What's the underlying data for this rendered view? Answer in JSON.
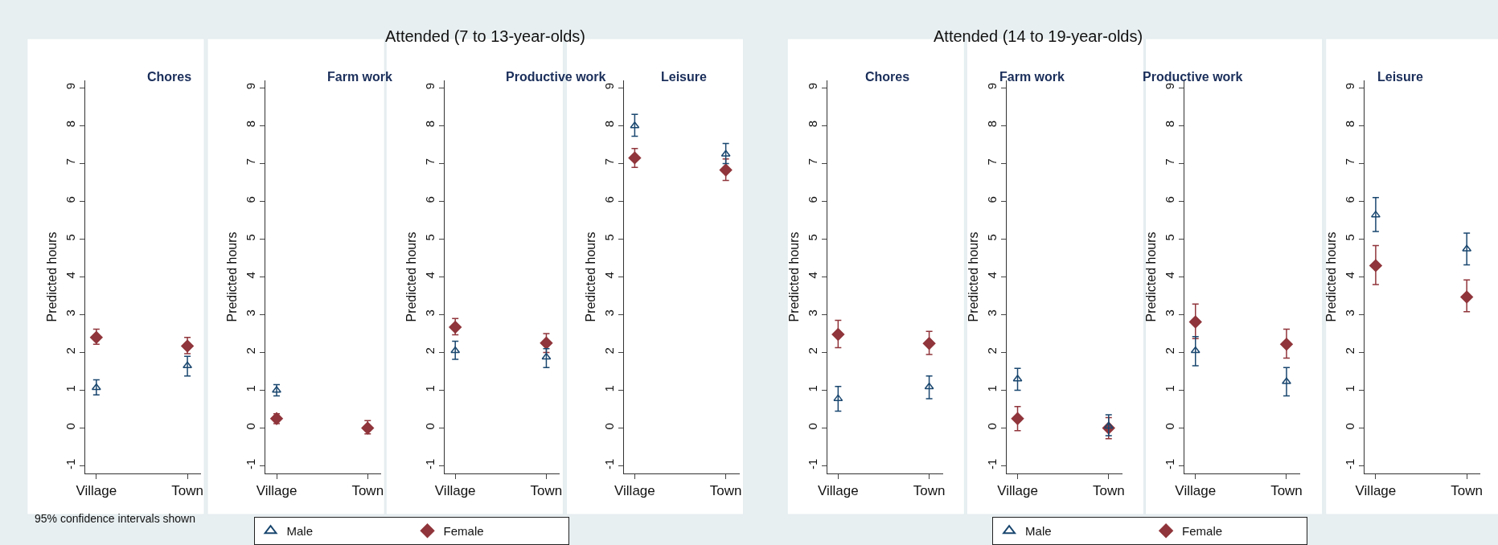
{
  "chart_data": [
    {
      "type": "scatter",
      "title": "Chores",
      "ylabel": "Predicted hours",
      "annotations": [
        "Attended (7 to 13-year-olds)",
        "95% confidence intervals shown"
      ],
      "categories": [
        "Village",
        "Town"
      ],
      "ylim": [
        -1.2,
        9.2
      ],
      "yticks": [
        -1,
        0,
        1,
        2,
        3,
        4,
        5,
        6,
        7,
        8,
        9
      ],
      "legend": "bottom",
      "series": [
        {
          "name": "Male",
          "color": "#1a476f",
          "marker": "triangle",
          "values": [
            1.07,
            1.65
          ],
          "errors": [
            [
              0.88,
              1.28
            ],
            [
              1.38,
              1.9
            ]
          ]
        },
        {
          "name": "Female",
          "color": "#90353b",
          "marker": "diamond",
          "values": [
            2.4,
            2.17
          ],
          "errors": [
            [
              2.22,
              2.62
            ],
            [
              1.97,
              2.4
            ]
          ]
        }
      ]
    },
    {
      "type": "scatter",
      "title": "Farm work",
      "ylabel": "Predicted hours",
      "categories": [
        "Village",
        "Town"
      ],
      "ylim": [
        -1.2,
        9.2
      ],
      "yticks": [
        -1,
        0,
        1,
        2,
        3,
        4,
        5,
        6,
        7,
        8,
        9
      ],
      "series": [
        {
          "color": "#1a476f",
          "marker": "triangle",
          "values": [
            1.0,
            null
          ],
          "errors": [
            [
              0.85,
              1.15
            ],
            null
          ]
        },
        {
          "color": "#90353b",
          "marker": "diamond",
          "values": [
            0.25,
            0.0
          ],
          "errors": [
            [
              0.12,
              0.38
            ],
            [
              -0.15,
              0.2
            ]
          ]
        }
      ]
    },
    {
      "type": "scatter",
      "title": "Productive work",
      "ylabel": "Predicted hours",
      "categories": [
        "Village",
        "Town"
      ],
      "ylim": [
        -1.2,
        9.2
      ],
      "yticks": [
        -1,
        0,
        1,
        2,
        3,
        4,
        5,
        6,
        7,
        8,
        9
      ],
      "series": [
        {
          "color": "#1a476f",
          "marker": "triangle",
          "values": [
            2.05,
            1.88
          ],
          "errors": [
            [
              1.82,
              2.3
            ],
            [
              1.6,
              2.1
            ]
          ]
        },
        {
          "color": "#90353b",
          "marker": "diamond",
          "values": [
            2.67,
            2.25
          ],
          "errors": [
            [
              2.47,
              2.9
            ],
            [
              2.0,
              2.5
            ]
          ]
        }
      ]
    },
    {
      "type": "scatter",
      "title": "Leisure",
      "ylabel": "Predicted hours",
      "categories": [
        "Village",
        "Town"
      ],
      "ylim": [
        -1.2,
        9.2
      ],
      "yticks": [
        -1,
        0,
        1,
        2,
        3,
        4,
        5,
        6,
        7,
        8,
        9
      ],
      "series": [
        {
          "color": "#1a476f",
          "marker": "triangle",
          "values": [
            8.0,
            7.25
          ],
          "errors": [
            [
              7.72,
              8.3
            ],
            [
              7.0,
              7.53
            ]
          ]
        },
        {
          "color": "#90353b",
          "marker": "diamond",
          "values": [
            7.15,
            6.83
          ],
          "errors": [
            [
              6.9,
              7.4
            ],
            [
              6.55,
              7.12
            ]
          ]
        }
      ]
    },
    {
      "type": "scatter",
      "title": "Chores",
      "ylabel": "Predicted hours",
      "annotations": [
        "Attended (14 to 19-year-olds)"
      ],
      "categories": [
        "Village",
        "Town"
      ],
      "ylim": [
        -1.2,
        9.2
      ],
      "yticks": [
        -1,
        0,
        1,
        2,
        3,
        4,
        5,
        6,
        7,
        8,
        9
      ],
      "legend": "bottom",
      "series": [
        {
          "name": "Male",
          "color": "#1a476f",
          "marker": "triangle",
          "values": [
            0.78,
            1.09
          ],
          "errors": [
            [
              0.45,
              1.1
            ],
            [
              0.78,
              1.38
            ]
          ]
        },
        {
          "name": "Female",
          "color": "#90353b",
          "marker": "diamond",
          "values": [
            2.48,
            2.24
          ],
          "errors": [
            [
              2.13,
              2.85
            ],
            [
              1.95,
              2.56
            ]
          ]
        }
      ]
    },
    {
      "type": "scatter",
      "title": "Farm work",
      "ylabel": "Predicted hours",
      "categories": [
        "Village",
        "Town"
      ],
      "ylim": [
        -1.2,
        9.2
      ],
      "yticks": [
        -1,
        0,
        1,
        2,
        3,
        4,
        5,
        6,
        7,
        8,
        9
      ],
      "series": [
        {
          "color": "#1a476f",
          "marker": "triangle",
          "values": [
            1.3,
            0.05
          ],
          "errors": [
            [
              1.0,
              1.58
            ],
            [
              -0.2,
              0.35
            ]
          ]
        },
        {
          "color": "#90353b",
          "marker": "diamond",
          "values": [
            0.25,
            0.0
          ],
          "errors": [
            [
              -0.07,
              0.57
            ],
            [
              -0.28,
              0.28
            ]
          ]
        }
      ]
    },
    {
      "type": "scatter",
      "title": "Productive work",
      "ylabel": "Predicted hours",
      "categories": [
        "Village",
        "Town"
      ],
      "ylim": [
        -1.2,
        9.2
      ],
      "yticks": [
        -1,
        0,
        1,
        2,
        3,
        4,
        5,
        6,
        7,
        8,
        9
      ],
      "series": [
        {
          "color": "#1a476f",
          "marker": "triangle",
          "values": [
            2.05,
            1.23
          ],
          "errors": [
            [
              1.65,
              2.42
            ],
            [
              0.85,
              1.6
            ]
          ]
        },
        {
          "color": "#90353b",
          "marker": "diamond",
          "values": [
            2.81,
            2.22
          ],
          "errors": [
            [
              2.37,
              3.28
            ],
            [
              1.85,
              2.62
            ]
          ]
        }
      ]
    },
    {
      "type": "scatter",
      "title": "Leisure",
      "ylabel": "Predicted hours",
      "categories": [
        "Village",
        "Town"
      ],
      "ylim": [
        -1.2,
        9.2
      ],
      "yticks": [
        -1,
        0,
        1,
        2,
        3,
        4,
        5,
        6,
        7,
        8,
        9
      ],
      "series": [
        {
          "color": "#1a476f",
          "marker": "triangle",
          "values": [
            5.64,
            4.74
          ],
          "errors": [
            [
              5.2,
              6.1
            ],
            [
              4.32,
              5.16
            ]
          ]
        },
        {
          "color": "#90353b",
          "marker": "diamond",
          "values": [
            4.3,
            3.47
          ],
          "errors": [
            [
              3.8,
              4.83
            ],
            [
              3.08,
              3.92
            ]
          ]
        }
      ]
    }
  ]
}
